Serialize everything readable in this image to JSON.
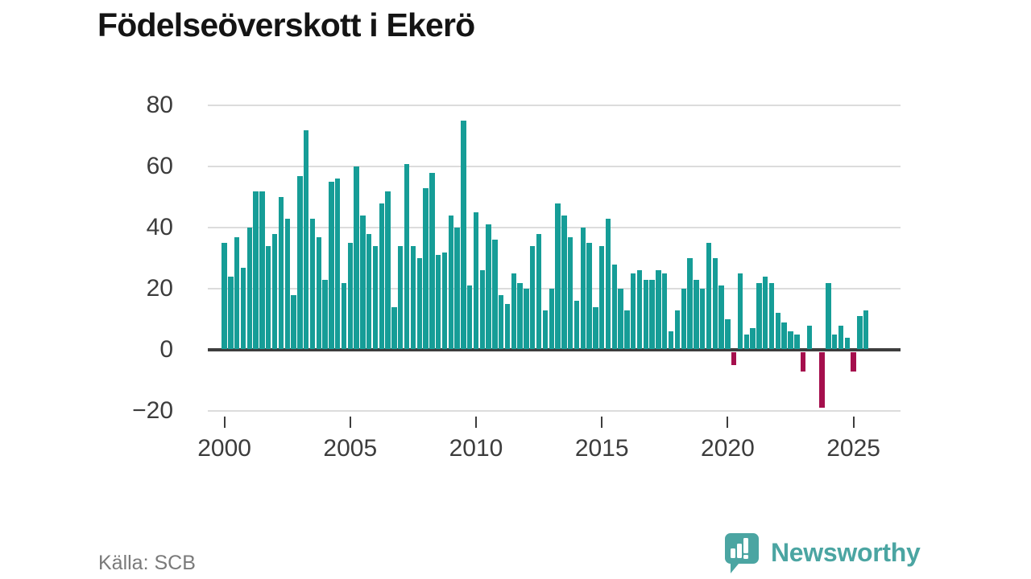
{
  "title": "Födelseöverskott i Ekerö",
  "source": "Källa: SCB",
  "logo": {
    "text": "Newsworthy"
  },
  "colors": {
    "positive_bar": "#169d97",
    "negative_bar": "#a50f4d",
    "grid": "#dcdcdc",
    "zero_axis": "#3d3d3d",
    "title_text": "#141414",
    "tick_text": "#3c3c3c",
    "source_text": "#7a7a7a",
    "logo_teal": "#4ba5a2"
  },
  "chart_data": {
    "type": "bar",
    "title": "Födelseöverskott i Ekerö",
    "xlabel": "",
    "ylabel": "",
    "frequency": "quarterly",
    "start_period": "2000 Q1",
    "end_period": "2025 Q3",
    "ylim": [
      -20,
      80
    ],
    "grid": true,
    "legend": "none",
    "y_tick_labels": [
      "80",
      "60",
      "40",
      "20",
      "0",
      "−20"
    ],
    "y_tick_values": [
      80,
      60,
      40,
      20,
      0,
      -20
    ],
    "x_tick_years": [
      2000,
      2005,
      2010,
      2015,
      2020,
      2025
    ],
    "by_year": [
      {
        "year": 2000,
        "quarters": [
          35,
          24,
          37,
          27
        ]
      },
      {
        "year": 2001,
        "quarters": [
          40,
          52,
          52,
          34
        ]
      },
      {
        "year": 2002,
        "quarters": [
          38,
          50,
          43,
          18
        ]
      },
      {
        "year": 2003,
        "quarters": [
          57,
          72,
          43,
          37
        ]
      },
      {
        "year": 2004,
        "quarters": [
          23,
          55,
          56,
          22
        ]
      },
      {
        "year": 2005,
        "quarters": [
          35,
          60,
          44,
          38
        ]
      },
      {
        "year": 2006,
        "quarters": [
          34,
          48,
          52,
          14
        ]
      },
      {
        "year": 2007,
        "quarters": [
          34,
          61,
          34,
          30
        ]
      },
      {
        "year": 2008,
        "quarters": [
          53,
          58,
          31,
          32
        ]
      },
      {
        "year": 2009,
        "quarters": [
          44,
          40,
          75,
          21
        ]
      },
      {
        "year": 2010,
        "quarters": [
          45,
          26,
          41,
          36
        ]
      },
      {
        "year": 2011,
        "quarters": [
          18,
          15,
          25,
          22
        ]
      },
      {
        "year": 2012,
        "quarters": [
          20,
          34,
          38,
          13
        ]
      },
      {
        "year": 2013,
        "quarters": [
          20,
          48,
          44,
          37
        ]
      },
      {
        "year": 2014,
        "quarters": [
          16,
          40,
          35,
          14
        ]
      },
      {
        "year": 2015,
        "quarters": [
          34,
          43,
          28,
          20
        ]
      },
      {
        "year": 2016,
        "quarters": [
          13,
          25,
          26,
          23
        ]
      },
      {
        "year": 2017,
        "quarters": [
          23,
          26,
          25,
          6
        ]
      },
      {
        "year": 2018,
        "quarters": [
          13,
          20,
          30,
          23
        ]
      },
      {
        "year": 2019,
        "quarters": [
          20,
          35,
          30,
          21
        ]
      },
      {
        "year": 2020,
        "quarters": [
          10,
          -5,
          25,
          5
        ]
      },
      {
        "year": 2021,
        "quarters": [
          7,
          22,
          24,
          22
        ]
      },
      {
        "year": 2022,
        "quarters": [
          12,
          9,
          6,
          5
        ]
      },
      {
        "year": 2023,
        "quarters": [
          -7,
          8,
          0,
          -19
        ]
      },
      {
        "year": 2024,
        "quarters": [
          22,
          5,
          8,
          4
        ]
      },
      {
        "year": 2025,
        "quarters": [
          -7,
          11,
          13
        ]
      }
    ]
  }
}
